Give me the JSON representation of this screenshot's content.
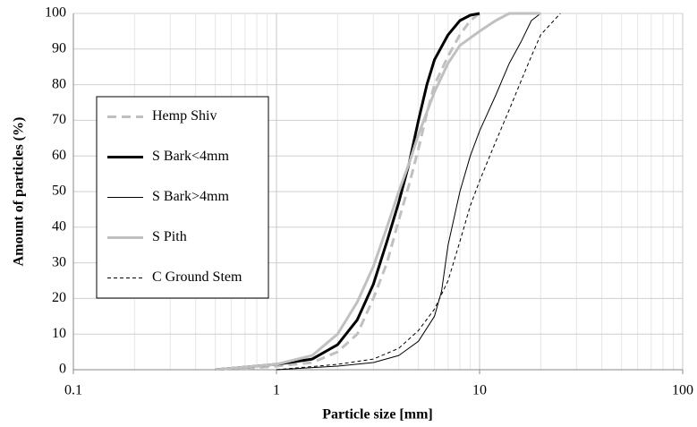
{
  "chart_data": {
    "type": "line",
    "xlabel": "Particle size [mm]",
    "ylabel": "Amount of particles (%)",
    "xscale": "log",
    "xlim": [
      0.1,
      100
    ],
    "xticks": [
      0.1,
      1,
      10,
      100
    ],
    "ylim": [
      0,
      100
    ],
    "yticks": [
      0,
      10,
      20,
      30,
      40,
      50,
      60,
      70,
      80,
      90,
      100
    ],
    "grid": true,
    "minor_grid": true,
    "legend": "left",
    "series": [
      {
        "name": "Hemp Shiv",
        "color": "#c0c0c0",
        "dash": "10,6",
        "width": 3,
        "x": [
          0.6,
          1,
          1.5,
          2,
          2.5,
          3,
          3.5,
          4,
          4.5,
          5,
          5.5,
          6,
          7,
          8,
          9,
          10
        ],
        "values": [
          0,
          1,
          2,
          5,
          10,
          20,
          30,
          42,
          52,
          62,
          72,
          80,
          88,
          94,
          98,
          100
        ]
      },
      {
        "name": "S Bark<4mm",
        "color": "#000000",
        "dash": "none",
        "width": 3,
        "x": [
          0.5,
          1,
          1.5,
          2,
          2.5,
          3,
          3.5,
          4,
          4.5,
          5,
          5.5,
          6,
          7,
          8,
          9,
          10
        ],
        "values": [
          0,
          1.5,
          3,
          7,
          14,
          24,
          36,
          47,
          58,
          70,
          80,
          87,
          94,
          98,
          99.5,
          100
        ]
      },
      {
        "name": "S Bark>4mm",
        "color": "#000000",
        "dash": "none",
        "width": 1,
        "x": [
          1,
          2,
          3,
          4,
          5,
          6,
          6.5,
          7,
          8,
          9,
          10,
          12,
          14,
          16,
          18,
          20
        ],
        "values": [
          0,
          1,
          2,
          4,
          8,
          15,
          22,
          35,
          50,
          60,
          67,
          77,
          86,
          92,
          98,
          100
        ]
      },
      {
        "name": "S Pith",
        "color": "#c0c0c0",
        "dash": "none",
        "width": 3,
        "x": [
          0.5,
          1,
          1.5,
          2,
          2.5,
          3,
          3.5,
          4,
          4.5,
          5,
          6,
          7,
          8,
          10,
          12,
          14,
          20
        ],
        "values": [
          0,
          1.5,
          4,
          10,
          19,
          29,
          40,
          50,
          58,
          66,
          78,
          86,
          91,
          95,
          98,
          100,
          100
        ]
      },
      {
        "name": "C Ground Stem",
        "color": "#000000",
        "dash": "4,3",
        "width": 1,
        "x": [
          1,
          2,
          3,
          4,
          5,
          6,
          7,
          8,
          9,
          10,
          12,
          14,
          16,
          18,
          20,
          25
        ],
        "values": [
          0,
          1.5,
          3,
          6,
          11,
          17,
          25,
          36,
          46,
          53,
          64,
          73,
          81,
          88,
          94,
          100
        ]
      }
    ]
  }
}
